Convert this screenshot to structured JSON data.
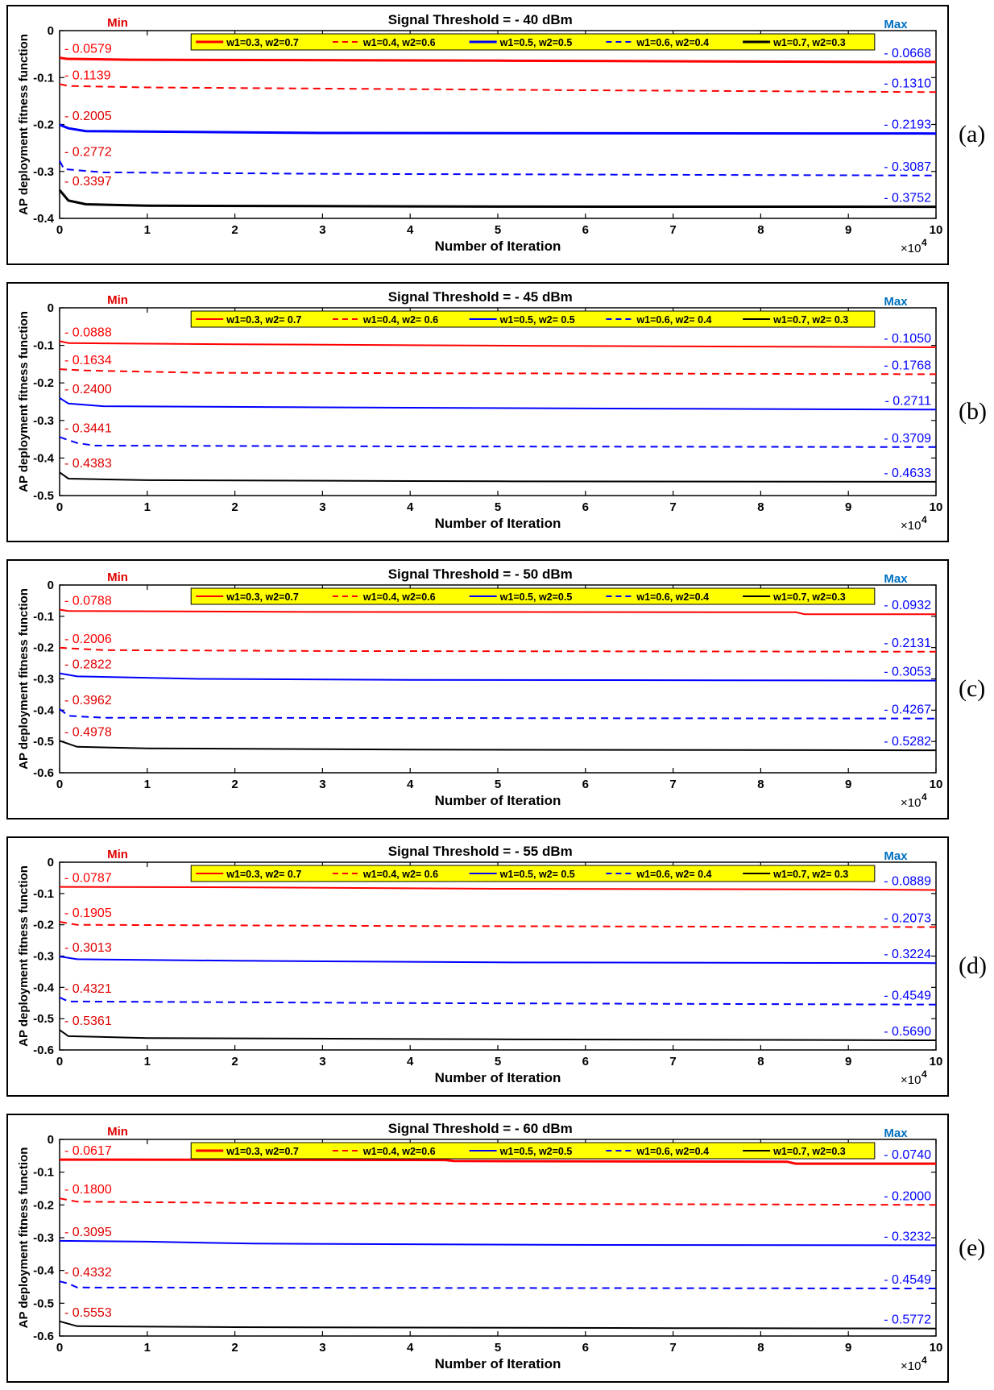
{
  "chart_data": [
    {
      "type": "line",
      "panel_label": "(a)",
      "title": "Signal Threshold = - 40 dBm",
      "xlabel": "Number of Iteration",
      "ylabel": "AP deployment fitness function",
      "x_exponent": "×10",
      "x_exponent_power": "4",
      "xlim": [
        0,
        10
      ],
      "ylim": [
        -0.4,
        0
      ],
      "xticks": [
        "0",
        "1",
        "2",
        "3",
        "4",
        "5",
        "6",
        "7",
        "8",
        "9",
        "10"
      ],
      "yticks": [
        "0",
        "-0.1",
        "-0.2",
        "-0.3",
        "-0.4"
      ],
      "min_label": "Min",
      "max_label": "Max",
      "series": [
        {
          "name": "w1=0.3, w2=0.7",
          "color": "#ff0000",
          "dash": "solid",
          "width": 3,
          "min_text": "- 0.0579",
          "max_text": "- 0.0668",
          "points": [
            [
              0,
              -0.0579
            ],
            [
              0.08,
              -0.06
            ],
            [
              0.8,
              -0.062
            ],
            [
              5,
              -0.064
            ],
            [
              9.4,
              -0.0668
            ],
            [
              10,
              -0.0668
            ]
          ]
        },
        {
          "name": "w1=0.4, w2=0.6",
          "color": "#ff0000",
          "dash": "dashed",
          "width": 2,
          "min_text": "- 0.1139",
          "max_text": "- 0.1310",
          "points": [
            [
              0,
              -0.1139
            ],
            [
              0.1,
              -0.118
            ],
            [
              1,
              -0.121
            ],
            [
              3.4,
              -0.124
            ],
            [
              6,
              -0.127
            ],
            [
              10,
              -0.131
            ]
          ]
        },
        {
          "name": "w1=0.5, w2=0.5",
          "color": "#0000ff",
          "dash": "solid",
          "width": 3,
          "min_text": "- 0.2005",
          "max_text": "- 0.2193",
          "points": [
            [
              0,
              -0.2005
            ],
            [
              0.1,
              -0.208
            ],
            [
              0.3,
              -0.214
            ],
            [
              3,
              -0.218
            ],
            [
              10,
              -0.2193
            ]
          ]
        },
        {
          "name": "w1=0.6, w2=0.4",
          "color": "#0000ff",
          "dash": "dashed",
          "width": 2,
          "min_text": "- 0.2772",
          "max_text": "- 0.3087",
          "points": [
            [
              0,
              -0.2772
            ],
            [
              0.05,
              -0.295
            ],
            [
              0.5,
              -0.302
            ],
            [
              3,
              -0.305
            ],
            [
              10,
              -0.3087
            ]
          ]
        },
        {
          "name": "w1=0.7, w2=0.3",
          "color": "#000000",
          "dash": "solid",
          "width": 3,
          "min_text": "- 0.3397",
          "max_text": "- 0.3752",
          "points": [
            [
              0,
              -0.3397
            ],
            [
              0.1,
              -0.362
            ],
            [
              0.3,
              -0.37
            ],
            [
              1,
              -0.373
            ],
            [
              5,
              -0.375
            ],
            [
              10,
              -0.3752
            ]
          ]
        }
      ]
    },
    {
      "type": "line",
      "panel_label": "(b)",
      "title": "Signal Threshold = - 45 dBm",
      "xlabel": "Number of Iteration",
      "ylabel": "AP deployment fitness function",
      "x_exponent": "×10",
      "x_exponent_power": "4",
      "xlim": [
        0,
        10
      ],
      "ylim": [
        -0.5,
        0
      ],
      "xticks": [
        "0",
        "1",
        "2",
        "3",
        "4",
        "5",
        "6",
        "7",
        "8",
        "9",
        "10"
      ],
      "yticks": [
        "0",
        "-0.1",
        "-0.2",
        "-0.3",
        "-0.4",
        "-0.5"
      ],
      "min_label": "Min",
      "max_label": "Max",
      "series": [
        {
          "name": "w1=0.3, w2= 0.7",
          "color": "#ff0000",
          "dash": "solid",
          "width": 2,
          "min_text": "- 0.0888",
          "max_text": "- 0.1050",
          "points": [
            [
              0,
              -0.0888
            ],
            [
              0.1,
              -0.094
            ],
            [
              2,
              -0.097
            ],
            [
              5.3,
              -0.101
            ],
            [
              10,
              -0.105
            ]
          ]
        },
        {
          "name": "w1=0.4, w2= 0.6",
          "color": "#ff0000",
          "dash": "dashed",
          "width": 2,
          "min_text": "- 0.1634",
          "max_text": "- 0.1768",
          "points": [
            [
              0,
              -0.1634
            ],
            [
              0.3,
              -0.167
            ],
            [
              1.6,
              -0.173
            ],
            [
              10,
              -0.1768
            ]
          ]
        },
        {
          "name": "w1=0.5, w2= 0.5",
          "color": "#0000ff",
          "dash": "solid",
          "width": 2,
          "min_text": "- 0.2400",
          "max_text": "- 0.2711",
          "points": [
            [
              0,
              -0.24
            ],
            [
              0.1,
              -0.255
            ],
            [
              0.5,
              -0.262
            ],
            [
              3,
              -0.265
            ],
            [
              6,
              -0.268
            ],
            [
              10,
              -0.2711
            ]
          ]
        },
        {
          "name": "w1=0.6, w2= 0.4",
          "color": "#0000ff",
          "dash": "dashed",
          "width": 2,
          "min_text": "- 0.3441",
          "max_text": "- 0.3709",
          "points": [
            [
              0,
              -0.3441
            ],
            [
              0.2,
              -0.36
            ],
            [
              0.4,
              -0.367
            ],
            [
              4,
              -0.369
            ],
            [
              10,
              -0.3709
            ]
          ]
        },
        {
          "name": "w1=0.7, w2= 0.3",
          "color": "#000000",
          "dash": "solid",
          "width": 2,
          "min_text": "- 0.4383",
          "max_text": "- 0.4633",
          "points": [
            [
              0,
              -0.4383
            ],
            [
              0.1,
              -0.455
            ],
            [
              1,
              -0.459
            ],
            [
              5,
              -0.462
            ],
            [
              10,
              -0.4633
            ]
          ]
        }
      ]
    },
    {
      "type": "line",
      "panel_label": "(c)",
      "title": "Signal Threshold = - 50 dBm",
      "xlabel": "Number of Iteration",
      "ylabel": "AP deployment fitness function",
      "x_exponent": "×10",
      "x_exponent_power": "4",
      "xlim": [
        0,
        10
      ],
      "ylim": [
        -0.6,
        0
      ],
      "xticks": [
        "0",
        "1",
        "2",
        "3",
        "4",
        "5",
        "6",
        "7",
        "8",
        "9",
        "10"
      ],
      "yticks": [
        "0",
        "-0.1",
        "-0.2",
        "-0.3",
        "-0.4",
        "-0.5",
        "-0.6"
      ],
      "min_label": "Min",
      "max_label": "Max",
      "series": [
        {
          "name": "w1=0.3, w2=0.7",
          "color": "#ff0000",
          "dash": "solid",
          "width": 2,
          "min_text": "- 0.0788",
          "max_text": "- 0.0932",
          "points": [
            [
              0,
              -0.0788
            ],
            [
              0.1,
              -0.083
            ],
            [
              3,
              -0.086
            ],
            [
              8.4,
              -0.087
            ],
            [
              8.5,
              -0.0932
            ],
            [
              10,
              -0.0932
            ]
          ]
        },
        {
          "name": "w1=0.4, w2=0.6",
          "color": "#ff0000",
          "dash": "dashed",
          "width": 2,
          "min_text": "- 0.2006",
          "max_text": "- 0.2131",
          "points": [
            [
              0,
              -0.2006
            ],
            [
              0.5,
              -0.208
            ],
            [
              3,
              -0.211
            ],
            [
              10,
              -0.2131
            ]
          ]
        },
        {
          "name": "w1=0.5, w2=0.5",
          "color": "#0000ff",
          "dash": "solid",
          "width": 2,
          "min_text": "- 0.2822",
          "max_text": "- 0.3053",
          "points": [
            [
              0,
              -0.2822
            ],
            [
              0.2,
              -0.292
            ],
            [
              1.6,
              -0.3
            ],
            [
              4,
              -0.303
            ],
            [
              10,
              -0.3053
            ]
          ]
        },
        {
          "name": "w1=0.6, w2=0.4",
          "color": "#0000ff",
          "dash": "dashed",
          "width": 2,
          "min_text": "- 0.3962",
          "max_text": "- 0.4267",
          "points": [
            [
              0,
              -0.3962
            ],
            [
              0.1,
              -0.418
            ],
            [
              0.5,
              -0.424
            ],
            [
              10,
              -0.4267
            ]
          ]
        },
        {
          "name": "w1=0.7, w2=0.3",
          "color": "#000000",
          "dash": "solid",
          "width": 2,
          "min_text": "- 0.4978",
          "max_text": "- 0.5282",
          "points": [
            [
              0,
              -0.4978
            ],
            [
              0.2,
              -0.517
            ],
            [
              1,
              -0.522
            ],
            [
              4,
              -0.526
            ],
            [
              10,
              -0.5282
            ]
          ]
        }
      ]
    },
    {
      "type": "line",
      "panel_label": "(d)",
      "title": "Signal Threshold = - 55 dBm",
      "xlabel": "Number of Iteration",
      "ylabel": "AP deployment fitness function",
      "x_exponent": "×10",
      "x_exponent_power": "4",
      "xlim": [
        0,
        10
      ],
      "ylim": [
        -0.6,
        0
      ],
      "xticks": [
        "0",
        "1",
        "2",
        "3",
        "4",
        "5",
        "6",
        "7",
        "8",
        "9",
        "10"
      ],
      "yticks": [
        "0",
        "-0.1",
        "-0.2",
        "-0.3",
        "-0.4",
        "-0.5",
        "-0.6"
      ],
      "min_label": "Min",
      "max_label": "Max",
      "series": [
        {
          "name": "w1=0.3, w2= 0.7",
          "color": "#ff0000",
          "dash": "solid",
          "width": 2,
          "min_text": "- 0.0787",
          "max_text": "- 0.0889",
          "points": [
            [
              0,
              -0.0787
            ],
            [
              2,
              -0.08
            ],
            [
              5,
              -0.085
            ],
            [
              9,
              -0.087
            ],
            [
              10,
              -0.0889
            ]
          ]
        },
        {
          "name": "w1=0.4, w2= 0.6",
          "color": "#ff0000",
          "dash": "dashed",
          "width": 2,
          "min_text": "- 0.1905",
          "max_text": "- 0.2073",
          "points": [
            [
              0,
              -0.1905
            ],
            [
              0.2,
              -0.2
            ],
            [
              4,
              -0.204
            ],
            [
              10,
              -0.2073
            ]
          ]
        },
        {
          "name": "w1=0.5, w2= 0.5",
          "color": "#0000ff",
          "dash": "solid",
          "width": 2,
          "min_text": "- 0.3013",
          "max_text": "- 0.3224",
          "points": [
            [
              0,
              -0.3013
            ],
            [
              0.2,
              -0.31
            ],
            [
              2,
              -0.315
            ],
            [
              5,
              -0.32
            ],
            [
              10,
              -0.3224
            ]
          ]
        },
        {
          "name": "w1=0.6, w2= 0.4",
          "color": "#0000ff",
          "dash": "dashed",
          "width": 2,
          "min_text": "- 0.4321",
          "max_text": "- 0.4549",
          "points": [
            [
              0,
              -0.4321
            ],
            [
              0.1,
              -0.445
            ],
            [
              4,
              -0.45
            ],
            [
              10,
              -0.4549
            ]
          ]
        },
        {
          "name": "w1=0.7, w2= 0.3",
          "color": "#000000",
          "dash": "solid",
          "width": 2,
          "min_text": "- 0.5361",
          "max_text": "- 0.5690",
          "points": [
            [
              0,
              -0.5361
            ],
            [
              0.1,
              -0.556
            ],
            [
              1,
              -0.562
            ],
            [
              5,
              -0.566
            ],
            [
              10,
              -0.569
            ]
          ]
        }
      ]
    },
    {
      "type": "line",
      "panel_label": "(e)",
      "title": "Signal Threshold = - 60 dBm",
      "xlabel": "Number of Iteration",
      "ylabel": "AP deployment fitness function",
      "x_exponent": "×10",
      "x_exponent_power": "4",
      "xlim": [
        0,
        10
      ],
      "ylim": [
        -0.6,
        0
      ],
      "xticks": [
        "0",
        "1",
        "2",
        "3",
        "4",
        "5",
        "6",
        "7",
        "8",
        "9",
        "10"
      ],
      "yticks": [
        "0",
        "-0.1",
        "-0.2",
        "-0.3",
        "-0.4",
        "-0.5",
        "-0.6"
      ],
      "min_label": "Min",
      "max_label": "Max",
      "series": [
        {
          "name": "w1=0.3, w2=0.7",
          "color": "#ff0000",
          "dash": "solid",
          "width": 3,
          "min_text": "- 0.0617",
          "max_text": "- 0.0740",
          "points": [
            [
              0,
              -0.0617
            ],
            [
              4.4,
              -0.063
            ],
            [
              4.5,
              -0.066
            ],
            [
              8.3,
              -0.068
            ],
            [
              8.4,
              -0.074
            ],
            [
              10,
              -0.074
            ]
          ]
        },
        {
          "name": "w1=0.4, w2=0.6",
          "color": "#ff0000",
          "dash": "dashed",
          "width": 2,
          "min_text": "- 0.1800",
          "max_text": "- 0.2000",
          "points": [
            [
              0,
              -0.18
            ],
            [
              0.2,
              -0.19
            ],
            [
              2.8,
              -0.195
            ],
            [
              10,
              -0.2
            ]
          ]
        },
        {
          "name": "w1=0.5, w2=0.5",
          "color": "#0000ff",
          "dash": "solid",
          "width": 2,
          "min_text": "- 0.3095",
          "max_text": "- 0.3232",
          "points": [
            [
              0,
              -0.3095
            ],
            [
              1,
              -0.312
            ],
            [
              2.2,
              -0.318
            ],
            [
              5.8,
              -0.322
            ],
            [
              10,
              -0.3232
            ]
          ]
        },
        {
          "name": "w1=0.6, w2=0.4",
          "color": "#0000ff",
          "dash": "dashed",
          "width": 2,
          "min_text": "- 0.4332",
          "max_text": "- 0.4549",
          "points": [
            [
              0,
              -0.4332
            ],
            [
              0.1,
              -0.44
            ],
            [
              0.2,
              -0.452
            ],
            [
              10,
              -0.4549
            ]
          ]
        },
        {
          "name": "w1=0.7, w2=0.3",
          "color": "#000000",
          "dash": "solid",
          "width": 2,
          "min_text": "- 0.5553",
          "max_text": "- 0.5772",
          "points": [
            [
              0,
              -0.5553
            ],
            [
              0.2,
              -0.57
            ],
            [
              2,
              -0.573
            ],
            [
              7,
              -0.576
            ],
            [
              10,
              -0.5772
            ]
          ]
        }
      ]
    }
  ]
}
